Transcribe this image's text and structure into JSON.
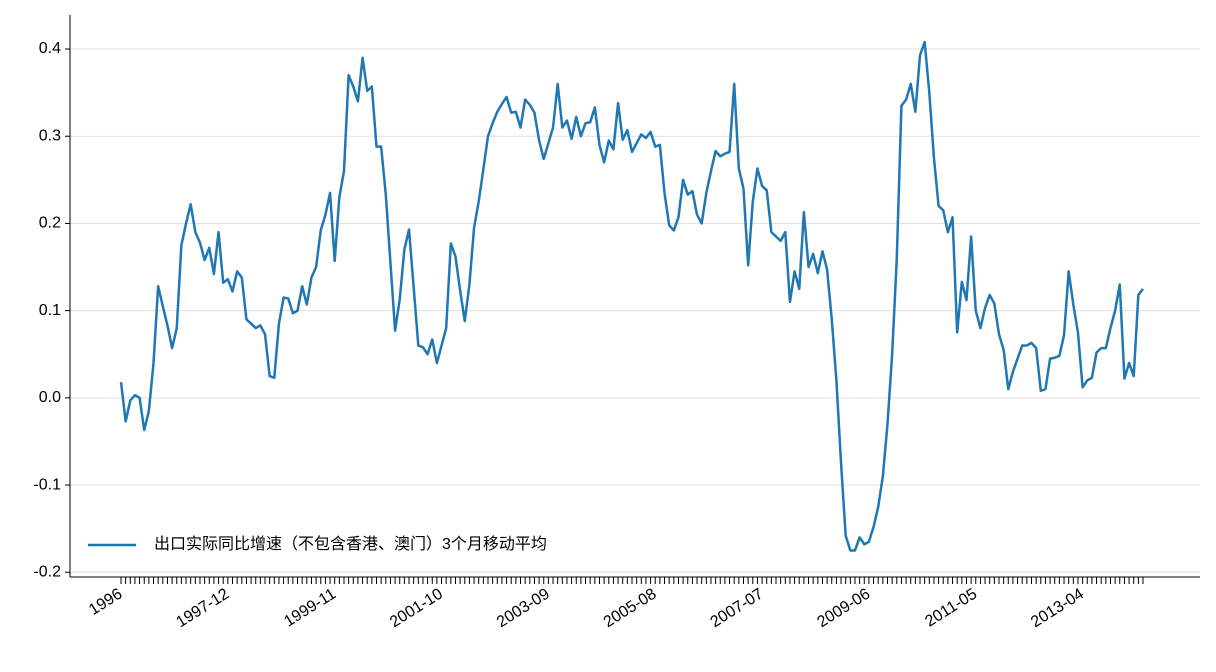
{
  "chart_data": {
    "type": "line",
    "categories": [
      "1996",
      null,
      null,
      null,
      null,
      null,
      null,
      null,
      null,
      null,
      null,
      null,
      null,
      null,
      null,
      null,
      null,
      null,
      null,
      null,
      null,
      null,
      null,
      "1997-12",
      null,
      null,
      null,
      null,
      null,
      null,
      null,
      null,
      null,
      null,
      null,
      null,
      null,
      null,
      null,
      null,
      null,
      null,
      null,
      null,
      null,
      null,
      "1999-11",
      null,
      null,
      null,
      null,
      null,
      null,
      null,
      null,
      null,
      null,
      null,
      null,
      null,
      null,
      null,
      null,
      null,
      null,
      null,
      null,
      null,
      null,
      "2001-10",
      null,
      null,
      null,
      null,
      null,
      null,
      null,
      null,
      null,
      null,
      null,
      null,
      null,
      null,
      null,
      null,
      null,
      null,
      null,
      null,
      null,
      null,
      "2003-09",
      null,
      null,
      null,
      null,
      null,
      null,
      null,
      null,
      null,
      null,
      null,
      null,
      null,
      null,
      null,
      null,
      null,
      null,
      null,
      null,
      null,
      null,
      "2005-08",
      null,
      null,
      null,
      null,
      null,
      null,
      null,
      null,
      null,
      null,
      null,
      null,
      null,
      null,
      null,
      null,
      null,
      null,
      null,
      null,
      null,
      null,
      "2007-07",
      null,
      null,
      null,
      null,
      null,
      null,
      null,
      null,
      null,
      null,
      null,
      null,
      null,
      null,
      null,
      null,
      null,
      null,
      null,
      null,
      null,
      null,
      "2009-06",
      null,
      null,
      null,
      null,
      null,
      null,
      null,
      null,
      null,
      null,
      null,
      null,
      null,
      null,
      null,
      null,
      null,
      null,
      null,
      null,
      null,
      null,
      "2011-05",
      null,
      null,
      null,
      null,
      null,
      null,
      null,
      null,
      null,
      null,
      null,
      null,
      null,
      null,
      null,
      null,
      null,
      null,
      null,
      null,
      null,
      null,
      "2013-04",
      null,
      null,
      null,
      null,
      null,
      null,
      null,
      null,
      null,
      null,
      null,
      null,
      null
    ],
    "series": [
      {
        "name": "出口实际同比增速（不包含香港、澳门）3个月移动平均",
        "color": "#1f77b4",
        "values": [
          0.018,
          -0.027,
          -0.003,
          0.003,
          0.0,
          -0.037,
          -0.015,
          0.04,
          0.128,
          0.105,
          0.083,
          0.057,
          0.08,
          0.175,
          0.2,
          0.222,
          0.19,
          0.178,
          0.158,
          0.172,
          0.142,
          0.19,
          0.132,
          0.136,
          0.122,
          0.145,
          0.138,
          0.09,
          0.085,
          0.08,
          0.083,
          0.073,
          0.025,
          0.023,
          0.085,
          0.115,
          0.114,
          0.097,
          0.1,
          0.128,
          0.107,
          0.138,
          0.15,
          0.192,
          0.21,
          0.235,
          0.157,
          0.23,
          0.26,
          0.37,
          0.357,
          0.34,
          0.39,
          0.352,
          0.357,
          0.288,
          0.288,
          0.233,
          0.155,
          0.077,
          0.113,
          0.17,
          0.193,
          0.127,
          0.06,
          0.058,
          0.05,
          0.067,
          0.04,
          0.06,
          0.08,
          0.177,
          0.162,
          0.123,
          0.088,
          0.13,
          0.195,
          0.225,
          0.262,
          0.3,
          0.315,
          0.328,
          0.337,
          0.345,
          0.327,
          0.328,
          0.31,
          0.342,
          0.336,
          0.327,
          0.295,
          0.274,
          0.292,
          0.31,
          0.36,
          0.31,
          0.318,
          0.297,
          0.322,
          0.3,
          0.315,
          0.316,
          0.333,
          0.29,
          0.27,
          0.295,
          0.285,
          0.338,
          0.296,
          0.307,
          0.282,
          0.292,
          0.302,
          0.298,
          0.305,
          0.288,
          0.29,
          0.235,
          0.198,
          0.192,
          0.207,
          0.25,
          0.233,
          0.237,
          0.21,
          0.2,
          0.235,
          0.26,
          0.283,
          0.277,
          0.28,
          0.282,
          0.36,
          0.263,
          0.24,
          0.152,
          0.225,
          0.263,
          0.243,
          0.238,
          0.19,
          0.185,
          0.18,
          0.19,
          0.11,
          0.145,
          0.125,
          0.213,
          0.15,
          0.165,
          0.143,
          0.168,
          0.147,
          0.09,
          0.02,
          -0.075,
          -0.158,
          -0.175,
          -0.175,
          -0.16,
          -0.168,
          -0.165,
          -0.148,
          -0.125,
          -0.09,
          -0.03,
          0.05,
          0.16,
          0.335,
          0.342,
          0.36,
          0.328,
          0.393,
          0.408,
          0.35,
          0.275,
          0.22,
          0.215,
          0.19,
          0.207,
          0.075,
          0.133,
          0.112,
          0.185,
          0.1,
          0.08,
          0.103,
          0.118,
          0.108,
          0.073,
          0.055,
          0.01,
          0.03,
          0.045,
          0.06,
          0.06,
          0.063,
          0.057,
          0.008,
          0.01,
          0.045,
          0.046,
          0.048,
          0.072,
          0.145,
          0.107,
          0.075,
          0.012,
          0.02,
          0.023,
          0.052,
          0.057,
          0.057,
          0.08,
          0.1,
          0.13,
          0.022,
          0.04,
          0.025,
          0.118,
          0.125
        ]
      }
    ],
    "ylim": [
      -0.202,
      0.439
    ],
    "yticks": [
      -0.2,
      -0.1,
      {
        "value": 0,
        "label": "0.0"
      },
      0.1,
      0.2,
      0.3,
      0.4
    ],
    "grid": true,
    "legend": "lower left"
  }
}
